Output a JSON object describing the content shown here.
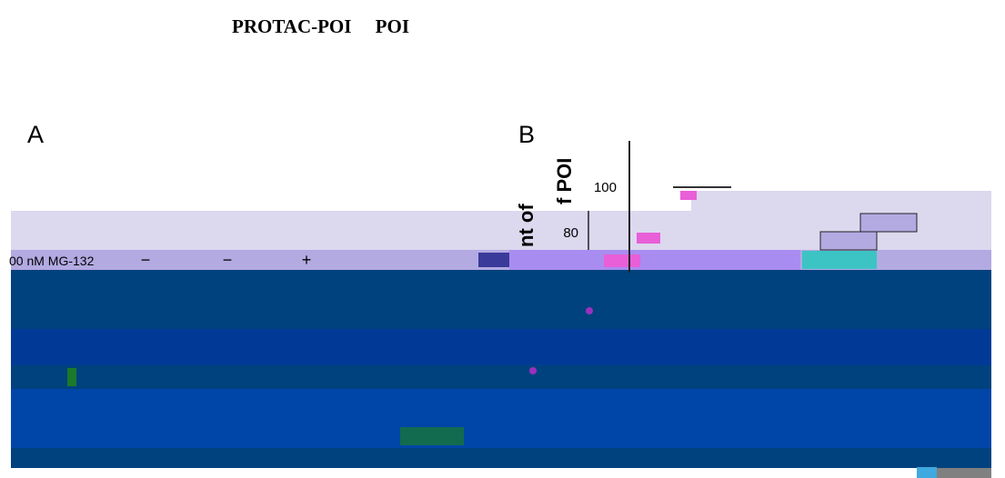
{
  "header": {
    "title": "PROTAC-POI     POI"
  },
  "figure": {
    "panel_a": {
      "label": "A",
      "row_label": "00 nM MG-132",
      "signs": [
        "−",
        "−",
        "+"
      ]
    },
    "panel_b": {
      "label": "B",
      "axis_label_parts": [
        "nt of",
        "f POI"
      ],
      "ticks": [
        "100",
        "80"
      ]
    }
  }
}
